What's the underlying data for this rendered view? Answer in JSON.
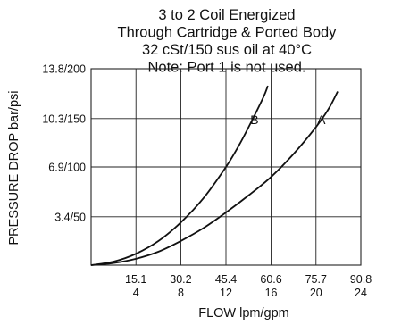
{
  "chart_data": {
    "type": "line",
    "title": [
      "3 to 2 Coil Energized",
      "Through Cartridge & Ported Body",
      "32 cSt/150 sus oil at 40°C",
      "Note: Port 1 is not used."
    ],
    "xlabel": "FLOW lpm/gpm",
    "ylabel": "PRESSURE DROP bar/psi",
    "x_ticks": [
      {
        "value": 15.1,
        "top": "15.1",
        "bottom": "4"
      },
      {
        "value": 30.2,
        "top": "30.2",
        "bottom": "8"
      },
      {
        "value": 45.4,
        "top": "45.4",
        "bottom": "12"
      },
      {
        "value": 60.6,
        "top": "60.6",
        "bottom": "16"
      },
      {
        "value": 75.7,
        "top": "75.7",
        "bottom": "20"
      },
      {
        "value": 90.8,
        "top": "90.8",
        "bottom": "24"
      }
    ],
    "y_ticks": [
      {
        "value": 3.4,
        "label": "3.4/50"
      },
      {
        "value": 6.9,
        "label": "6.9/100"
      },
      {
        "value": 10.3,
        "label": "10.3/150"
      },
      {
        "value": 13.8,
        "label": "13.8/200"
      }
    ],
    "xlim": [
      0,
      90.8
    ],
    "ylim": [
      0,
      13.8
    ],
    "grid": true,
    "series": [
      {
        "name": "B",
        "x": [
          0,
          7.6,
          15.1,
          22.7,
          30.2,
          37.8,
          45.4,
          50.0,
          54.0,
          58.0,
          59.5
        ],
        "y": [
          0,
          0.25,
          0.8,
          1.7,
          3.0,
          4.7,
          6.9,
          8.5,
          10.1,
          11.8,
          12.6
        ]
      },
      {
        "name": "A",
        "x": [
          0,
          7.6,
          15.1,
          22.7,
          30.2,
          37.8,
          45.4,
          53.0,
          60.6,
          68.1,
          75.7,
          80.0,
          83.0
        ],
        "y": [
          0,
          0.15,
          0.45,
          0.95,
          1.7,
          2.6,
          3.7,
          4.9,
          6.2,
          7.8,
          9.7,
          11.0,
          12.2
        ]
      }
    ],
    "curve_labels": [
      {
        "series": "B",
        "x": 55.0,
        "y": 9.9
      },
      {
        "series": "A",
        "x": 77.5,
        "y": 9.9
      }
    ]
  }
}
